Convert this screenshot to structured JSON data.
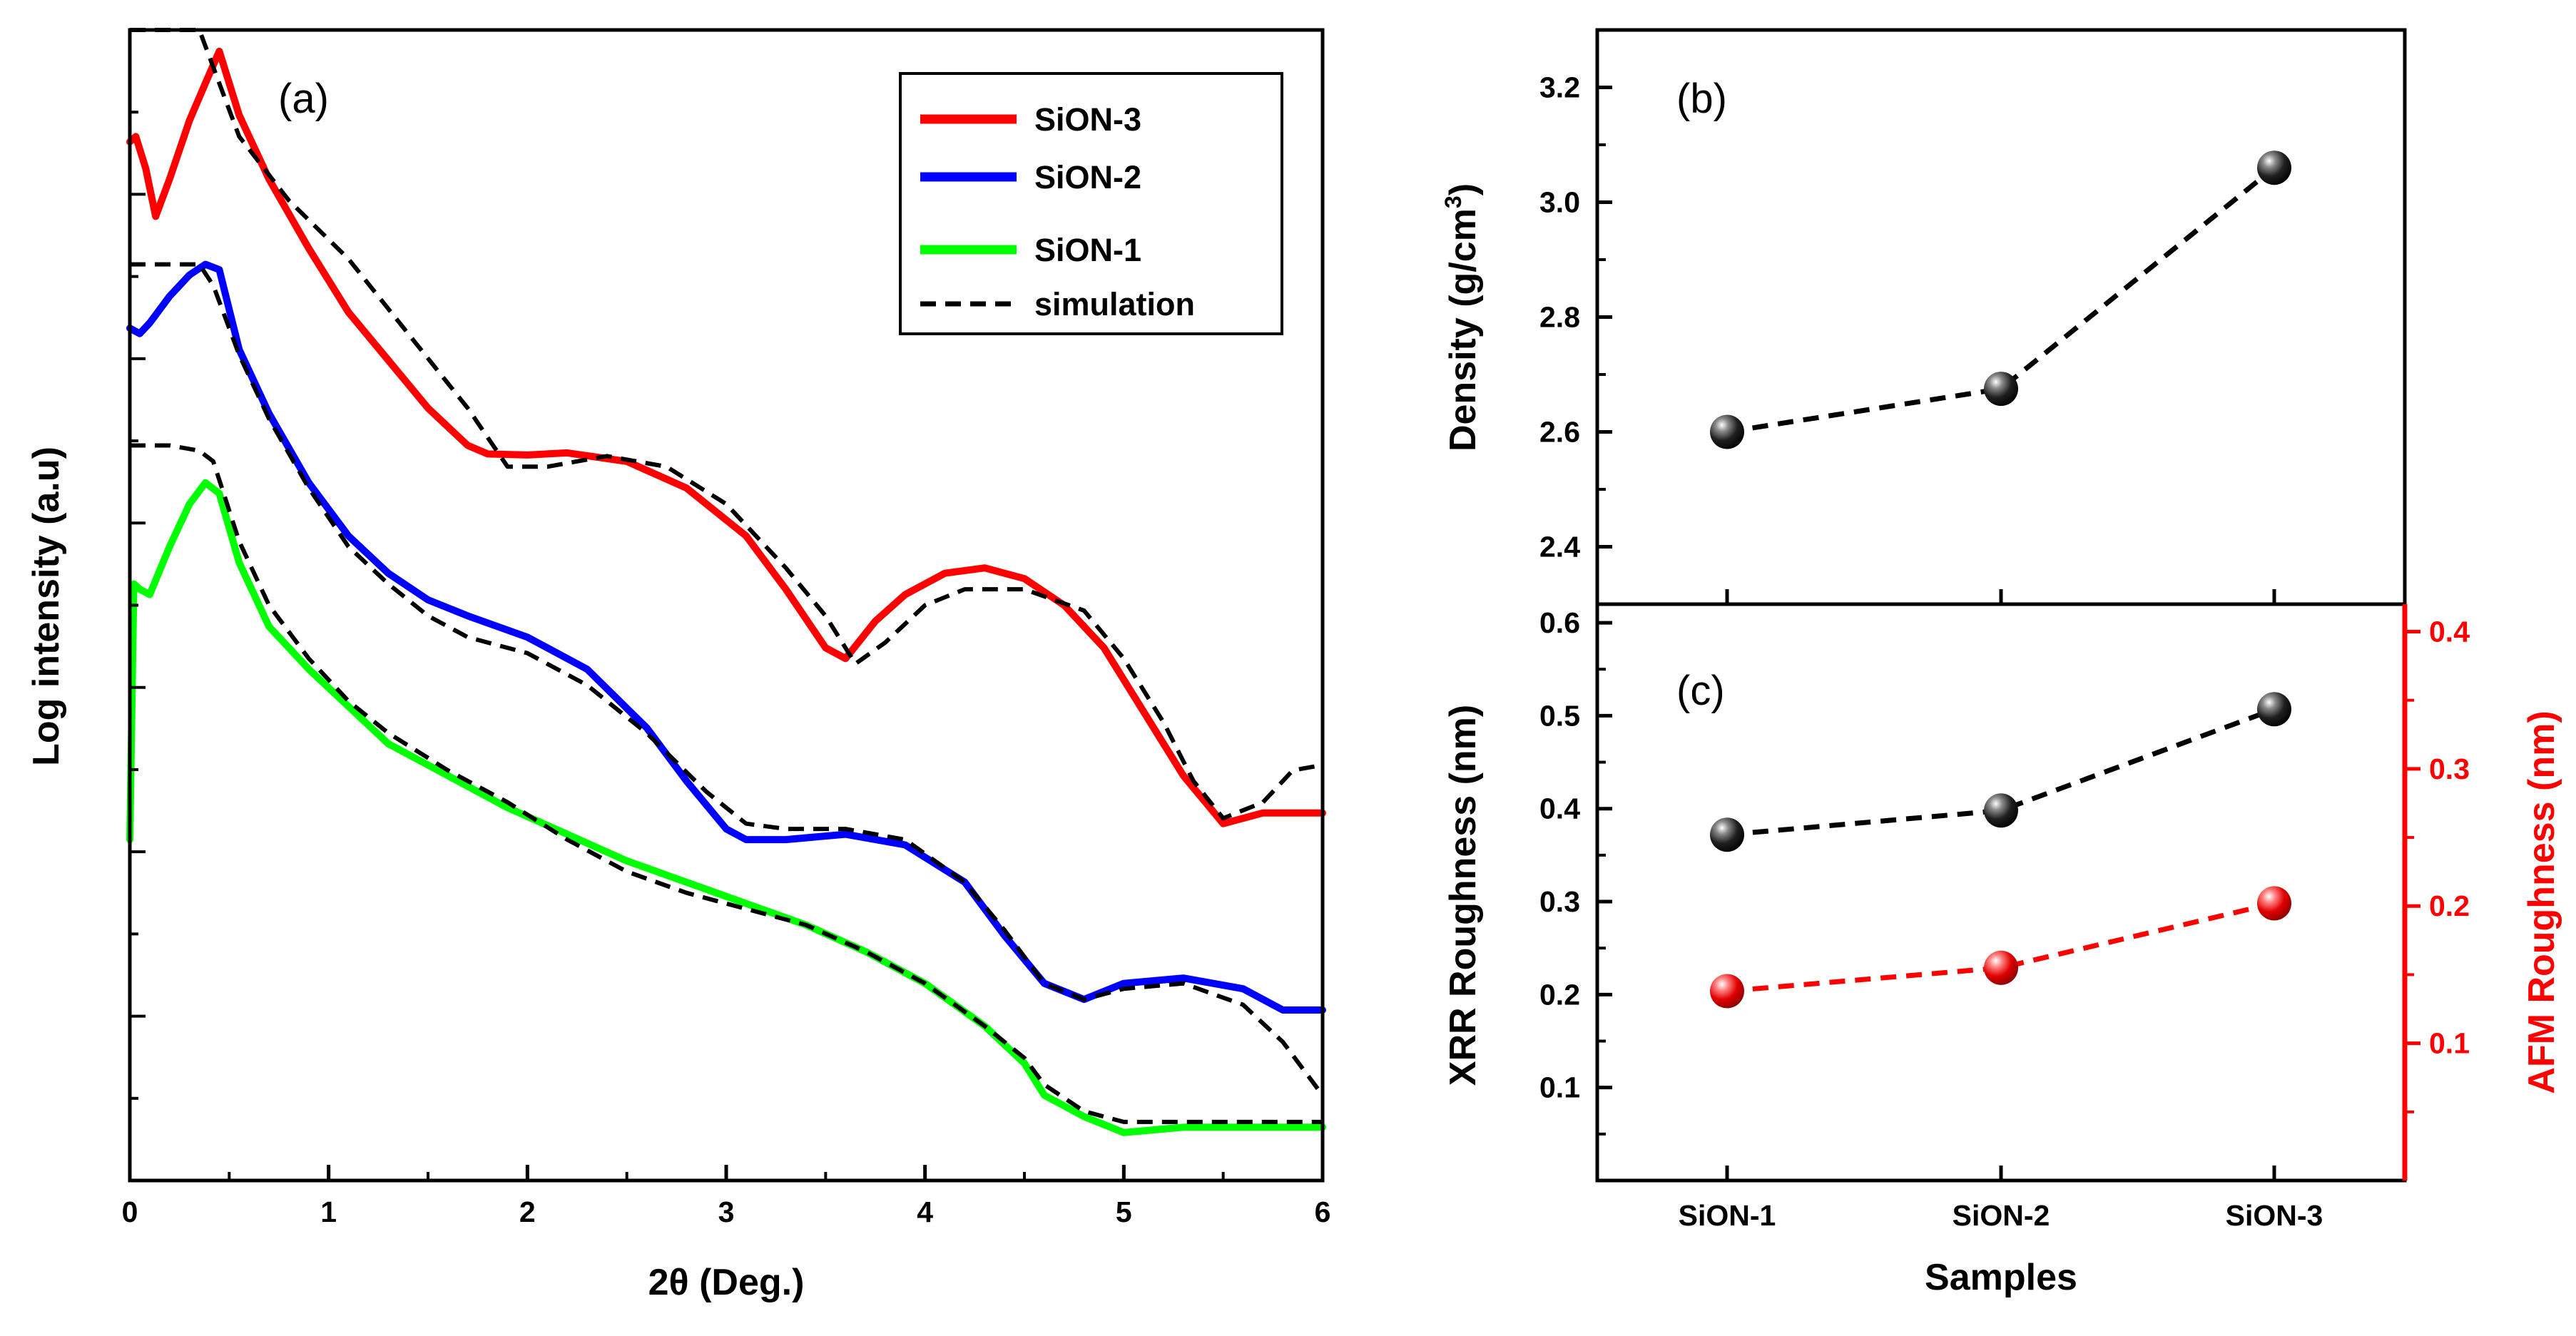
{
  "chart_data": [
    {
      "panel_label": "(a)",
      "type": "line",
      "xlabel": "2θ (Deg.)",
      "ylabel": "Log intensity (a.u)",
      "xlim": [
        0,
        6
      ],
      "ylim": [
        -10.8,
        0
      ],
      "xticks": [
        0,
        1,
        2,
        3,
        4,
        5,
        6
      ],
      "y_tick_labels_shown": false,
      "legend_position": "top-right",
      "series": [
        {
          "name": "SiON-3",
          "kind": "measured",
          "color": "#ff0000",
          "x": [
            0.0,
            0.03,
            0.08,
            0.13,
            0.2,
            0.3,
            0.38,
            0.45,
            0.55,
            0.7,
            0.9,
            1.1,
            1.3,
            1.5,
            1.7,
            1.8,
            2.0,
            2.2,
            2.5,
            2.8,
            3.1,
            3.3,
            3.5,
            3.6,
            3.75,
            3.9,
            4.1,
            4.3,
            4.5,
            4.7,
            4.9,
            5.1,
            5.3,
            5.5,
            5.7,
            6.0
          ],
          "y": [
            -1.05,
            -1.0,
            -1.3,
            -1.75,
            -1.4,
            -0.85,
            -0.5,
            -0.2,
            -0.8,
            -1.4,
            -2.05,
            -2.65,
            -3.1,
            -3.55,
            -3.9,
            -3.98,
            -3.99,
            -3.97,
            -4.05,
            -4.3,
            -4.75,
            -5.25,
            -5.8,
            -5.9,
            -5.55,
            -5.3,
            -5.1,
            -5.05,
            -5.15,
            -5.4,
            -5.8,
            -6.4,
            -7.0,
            -7.45,
            -7.35,
            -7.35
          ]
        },
        {
          "name": "SiON-2",
          "kind": "measured",
          "color": "#0000ff",
          "x": [
            0.0,
            0.05,
            0.1,
            0.2,
            0.3,
            0.38,
            0.45,
            0.55,
            0.7,
            0.9,
            1.1,
            1.3,
            1.5,
            1.7,
            2.0,
            2.3,
            2.6,
            2.8,
            3.0,
            3.1,
            3.3,
            3.6,
            3.9,
            4.2,
            4.4,
            4.6,
            4.8,
            5.0,
            5.3,
            5.6,
            5.8,
            6.0
          ],
          "y": [
            -2.8,
            -2.85,
            -2.75,
            -2.5,
            -2.3,
            -2.2,
            -2.25,
            -3.0,
            -3.6,
            -4.25,
            -4.75,
            -5.1,
            -5.35,
            -5.5,
            -5.7,
            -6.0,
            -6.55,
            -7.05,
            -7.5,
            -7.6,
            -7.6,
            -7.55,
            -7.65,
            -8.0,
            -8.5,
            -8.95,
            -9.1,
            -8.95,
            -8.9,
            -9.0,
            -9.2,
            -9.2
          ]
        },
        {
          "name": "SiON-1",
          "kind": "measured",
          "color": "#00ff00",
          "x": [
            0.0,
            0.02,
            0.05,
            0.1,
            0.2,
            0.3,
            0.38,
            0.45,
            0.55,
            0.7,
            0.9,
            1.1,
            1.3,
            1.6,
            1.9,
            2.2,
            2.5,
            2.8,
            3.1,
            3.4,
            3.7,
            4.0,
            4.3,
            4.5,
            4.6,
            4.8,
            5.0,
            5.3,
            5.6,
            6.0
          ],
          "y": [
            -7.6,
            -5.2,
            -5.25,
            -5.3,
            -4.85,
            -4.45,
            -4.25,
            -4.35,
            -5.0,
            -5.6,
            -6.0,
            -6.35,
            -6.7,
            -7.0,
            -7.3,
            -7.55,
            -7.8,
            -8.0,
            -8.2,
            -8.4,
            -8.65,
            -8.95,
            -9.35,
            -9.7,
            -10.0,
            -10.2,
            -10.35,
            -10.3,
            -10.3,
            -10.3
          ]
        },
        {
          "name": "simulation",
          "kind": "fit",
          "color": "#000000",
          "segments": [
            {
              "x": [
                0.0,
                0.2,
                0.35,
                0.42,
                0.55,
                0.8,
                1.1,
                1.4,
                1.7,
                1.9,
                2.1,
                2.4,
                2.7,
                3.0,
                3.3,
                3.5,
                3.65,
                3.8,
                4.0,
                4.2,
                4.5,
                4.8,
                5.0,
                5.2,
                5.35,
                5.5,
                5.7,
                5.85,
                6.0
              ],
              "y": [
                0.0,
                0.0,
                0.0,
                -0.35,
                -1.0,
                -1.6,
                -2.15,
                -2.85,
                -3.55,
                -4.1,
                -4.1,
                -4.0,
                -4.1,
                -4.45,
                -5.05,
                -5.5,
                -5.95,
                -5.75,
                -5.4,
                -5.25,
                -5.25,
                -5.45,
                -5.9,
                -6.5,
                -7.05,
                -7.4,
                -7.25,
                -6.95,
                -6.9
              ]
            },
            {
              "x": [
                0.0,
                0.2,
                0.35,
                0.42,
                0.55,
                0.7,
                0.9,
                1.1,
                1.3,
                1.5,
                1.7,
                2.0,
                2.3,
                2.6,
                2.9,
                3.1,
                3.3,
                3.6,
                3.9,
                4.2,
                4.4,
                4.6,
                4.8,
                5.0,
                5.3,
                5.6,
                5.8,
                6.0
              ],
              "y": [
                -2.2,
                -2.2,
                -2.2,
                -2.4,
                -3.05,
                -3.65,
                -4.3,
                -4.85,
                -5.2,
                -5.5,
                -5.7,
                -5.85,
                -6.15,
                -6.6,
                -7.15,
                -7.45,
                -7.5,
                -7.5,
                -7.6,
                -8.0,
                -8.45,
                -8.95,
                -9.1,
                -9.0,
                -8.95,
                -9.15,
                -9.5,
                -10.0
              ]
            },
            {
              "x": [
                0.0,
                0.2,
                0.35,
                0.42,
                0.55,
                0.7,
                0.9,
                1.1,
                1.3,
                1.6,
                1.9,
                2.2,
                2.5,
                2.8,
                3.1,
                3.4,
                3.7,
                4.0,
                4.3,
                4.5,
                4.6,
                4.8,
                5.0,
                5.3,
                5.6,
                6.0
              ],
              "y": [
                -3.9,
                -3.9,
                -3.95,
                -4.05,
                -4.8,
                -5.4,
                -5.9,
                -6.3,
                -6.6,
                -6.95,
                -7.25,
                -7.6,
                -7.9,
                -8.1,
                -8.25,
                -8.4,
                -8.65,
                -8.95,
                -9.35,
                -9.65,
                -9.9,
                -10.15,
                -10.25,
                -10.25,
                -10.25,
                -10.25
              ]
            }
          ]
        }
      ]
    },
    {
      "panel_label": "(b)",
      "type": "scatter",
      "categories": [
        "SiON-1",
        "SiON-2",
        "SiON-3"
      ],
      "xlabel": "",
      "ylabel": "Density (g/cm3)",
      "ylabel_parts": [
        "Density (g/cm",
        "3",
        ")"
      ],
      "ylim": [
        2.3,
        3.3
      ],
      "yticks": [
        "2.4",
        "2.6",
        "2.8",
        "3.0",
        "3.2"
      ],
      "series": [
        {
          "name": "Density",
          "color": "#000000",
          "values": [
            2.6,
            2.675,
            3.06
          ]
        }
      ]
    },
    {
      "panel_label": "(c)",
      "type": "scatter",
      "categories": [
        "SiON-1",
        "SiON-2",
        "SiON-3"
      ],
      "xlabel": "Samples",
      "ylabel": "XRR Roughness (nm)",
      "ylim": [
        0.0,
        0.62
      ],
      "yticks": [
        "0.1",
        "0.2",
        "0.3",
        "0.4",
        "0.5",
        "0.6"
      ],
      "y2label": "AFM Roughness (nm)",
      "y2lim": [
        0.0,
        0.42
      ],
      "y2ticks": [
        "0.1",
        "0.2",
        "0.3",
        "0.4"
      ],
      "series": [
        {
          "name": "XRR Roughness",
          "axis": "left",
          "color": "#000000",
          "values": [
            0.372,
            0.398,
            0.507
          ]
        },
        {
          "name": "AFM Roughness",
          "axis": "right",
          "color": "#ff0000",
          "values": [
            0.138,
            0.155,
            0.202
          ]
        }
      ]
    }
  ]
}
